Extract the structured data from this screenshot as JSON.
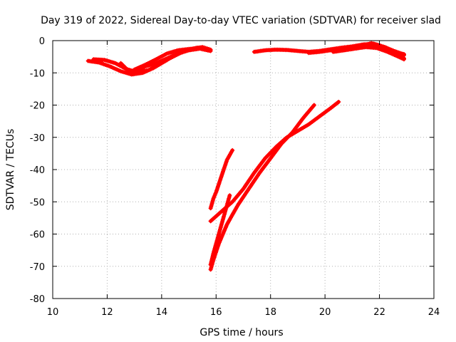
{
  "chart_data": {
    "type": "scatter",
    "title": "Day 319 of 2022, Sidereal Day-to-day VTEC variation (SDTVAR) for receiver slad",
    "xlabel": "GPS time / hours",
    "ylabel": "SDTVAR / TECUs",
    "xlim": [
      10,
      24
    ],
    "ylim": [
      -80,
      0
    ],
    "xticks": [
      "10",
      "12",
      "14",
      "16",
      "18",
      "20",
      "22",
      "24"
    ],
    "yticks": [
      "0",
      "-10",
      "-20",
      "-30",
      "-40",
      "-50",
      "-60",
      "-70",
      "-80"
    ],
    "grid": true,
    "marker": "+",
    "color": "#ff0000",
    "series": [
      {
        "name": "arc-morning-a",
        "x": [
          11.3,
          11.7,
          12.1,
          12.5,
          12.9,
          13.3,
          13.7,
          14.1,
          14.5,
          14.9,
          15.3,
          15.6
        ],
        "y": [
          -6.3,
          -6.8,
          -8.0,
          -9.5,
          -10.5,
          -10.0,
          -8.5,
          -6.5,
          -4.5,
          -3.0,
          -2.2,
          -2.4
        ]
      },
      {
        "name": "arc-morning-b",
        "x": [
          11.5,
          11.9,
          12.3,
          12.7,
          13.1,
          13.5,
          13.9,
          14.3,
          14.7,
          15.1,
          15.5,
          15.8
        ],
        "y": [
          -5.8,
          -6.0,
          -7.0,
          -8.8,
          -9.8,
          -9.2,
          -7.5,
          -5.5,
          -3.8,
          -2.6,
          -2.0,
          -2.8
        ]
      },
      {
        "name": "arc-morning-c",
        "x": [
          12.5,
          12.8,
          13.0,
          13.4,
          13.8,
          14.2,
          14.6,
          15.0,
          15.4,
          15.8
        ],
        "y": [
          -7.0,
          -9.5,
          -9.8,
          -8.0,
          -7.0,
          -5.5,
          -4.0,
          -3.0,
          -2.5,
          -3.2
        ]
      },
      {
        "name": "arc-morning-d",
        "x": [
          13.0,
          13.4,
          13.8,
          14.2,
          14.6,
          15.0,
          15.4,
          15.7
        ],
        "y": [
          -9.0,
          -7.5,
          -5.8,
          -4.0,
          -3.0,
          -2.6,
          -2.4,
          -3.0
        ]
      },
      {
        "name": "arc-afternoon-a",
        "x": [
          17.4,
          17.8,
          18.2,
          18.6,
          19.0,
          19.4,
          19.8,
          20.2,
          20.6,
          21.0,
          21.4,
          21.8,
          22.2,
          22.6,
          22.9
        ],
        "y": [
          -3.5,
          -3.0,
          -2.8,
          -2.9,
          -3.2,
          -3.5,
          -3.2,
          -2.7,
          -2.2,
          -1.8,
          -1.2,
          -1.0,
          -2.0,
          -3.5,
          -4.5
        ]
      },
      {
        "name": "arc-afternoon-b",
        "x": [
          19.4,
          19.8,
          20.2,
          20.6,
          21.0,
          21.4,
          21.8,
          22.2,
          22.6,
          22.9
        ],
        "y": [
          -3.8,
          -3.5,
          -3.0,
          -2.6,
          -2.0,
          -1.5,
          -1.2,
          -2.5,
          -4.5,
          -5.5
        ]
      },
      {
        "name": "arc-afternoon-c",
        "x": [
          20.3,
          20.7,
          21.1,
          21.5,
          21.9,
          22.3,
          22.7,
          22.9
        ],
        "y": [
          -3.5,
          -3.0,
          -2.5,
          -2.0,
          -2.3,
          -3.5,
          -5.0,
          -5.8
        ]
      },
      {
        "name": "arc-afternoon-d",
        "x": [
          21.0,
          21.4,
          21.7,
          22.0,
          22.4,
          22.8,
          22.9
        ],
        "y": [
          -2.5,
          -1.5,
          -0.8,
          -1.5,
          -2.8,
          -4.0,
          -4.2
        ]
      },
      {
        "name": "arc-steep-a",
        "x": [
          15.8,
          15.9,
          16.0,
          16.2,
          16.4,
          16.6
        ],
        "y": [
          -52.0,
          -49.0,
          -47.0,
          -42.0,
          -37.0,
          -34.0
        ]
      },
      {
        "name": "arc-steep-b",
        "x": [
          15.8,
          15.9,
          16.0,
          16.1,
          16.2,
          16.3,
          16.4,
          16.5
        ],
        "y": [
          -69.5,
          -66.0,
          -63.0,
          -60.0,
          -57.0,
          -54.0,
          -51.0,
          -48.0
        ]
      },
      {
        "name": "arc-rise-long",
        "x": [
          15.8,
          15.9,
          16.1,
          16.4,
          16.8,
          17.2,
          17.6,
          18.0,
          18.4,
          18.8,
          19.2,
          19.6
        ],
        "y": [
          -71.0,
          -68.0,
          -63.0,
          -57.0,
          -51.0,
          -46.0,
          -41.0,
          -36.5,
          -32.0,
          -28.5,
          -24.0,
          -20.0
        ]
      },
      {
        "name": "arc-rise-short",
        "x": [
          15.8,
          16.2,
          16.6,
          17.0,
          17.4,
          17.8,
          18.2,
          18.6,
          19.0,
          19.4,
          19.8,
          20.2,
          20.5
        ],
        "y": [
          -56.0,
          -53.0,
          -50.0,
          -46.0,
          -41.0,
          -36.5,
          -33.0,
          -30.0,
          -28.0,
          -26.0,
          -23.5,
          -21.0,
          -19.0
        ]
      }
    ]
  }
}
